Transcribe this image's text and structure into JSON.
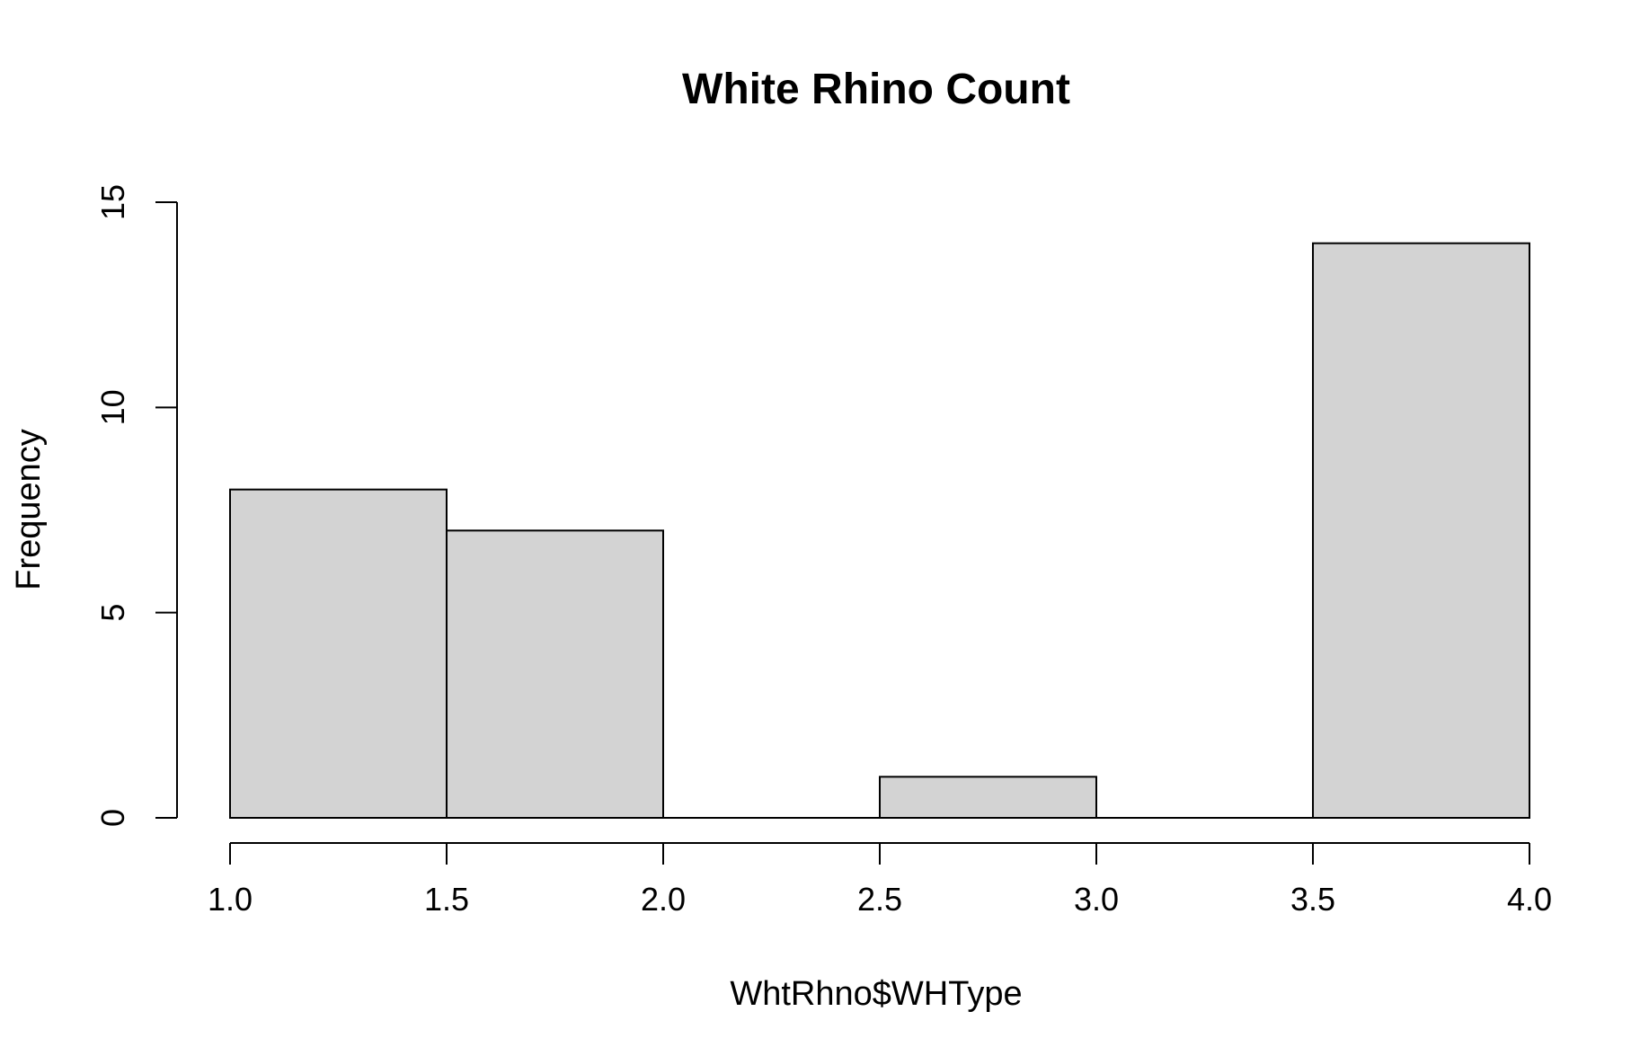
{
  "chart_data": {
    "type": "bar",
    "subtype": "histogram",
    "title": "White Rhino Count",
    "xlabel": "WhtRhno$WHType",
    "ylabel": "Frequency",
    "bins": [
      {
        "start": 1.0,
        "end": 1.5,
        "value": 8
      },
      {
        "start": 1.5,
        "end": 2.0,
        "value": 7
      },
      {
        "start": 2.0,
        "end": 2.5,
        "value": 0
      },
      {
        "start": 2.5,
        "end": 3.0,
        "value": 1
      },
      {
        "start": 3.0,
        "end": 3.5,
        "value": 0
      },
      {
        "start": 3.5,
        "end": 4.0,
        "value": 14
      }
    ],
    "xlim": [
      1.0,
      4.0
    ],
    "ylim": [
      0,
      15
    ],
    "xticks": [
      1.0,
      1.5,
      2.0,
      2.5,
      3.0,
      3.5,
      4.0
    ],
    "xtick_labels": [
      "1.0",
      "1.5",
      "2.0",
      "2.5",
      "3.0",
      "3.5",
      "4.0"
    ],
    "yticks": [
      0,
      5,
      10,
      15
    ],
    "ytick_labels": [
      "0",
      "5",
      "10",
      "15"
    ],
    "grid": false,
    "legend": "none",
    "colors": {
      "bar_fill": "#d3d3d3",
      "bar_stroke": "#000000",
      "axis": "#000000",
      "background": "#ffffff"
    }
  }
}
